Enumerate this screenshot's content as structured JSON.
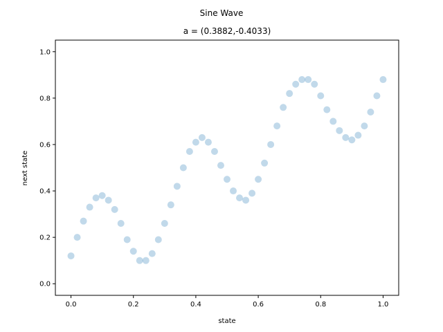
{
  "chart_data": {
    "type": "scatter",
    "title": "Sine Wave",
    "subtitle": "a = (0.3882,-0.4033)",
    "xlabel": "state",
    "ylabel": "next state",
    "xlim": [
      -0.05,
      1.05
    ],
    "ylim": [
      -0.05,
      1.05
    ],
    "xticks": [
      "0.0",
      "0.2",
      "0.4",
      "0.6",
      "0.8",
      "1.0"
    ],
    "yticks": [
      "0.0",
      "0.2",
      "0.4",
      "0.6",
      "0.8",
      "1.0"
    ],
    "grid": false,
    "point_color": "#1f77b4",
    "series": [
      {
        "x": [
          0.0,
          0.02,
          0.04,
          0.06,
          0.08,
          0.1,
          0.12,
          0.14,
          0.16,
          0.18,
          0.2,
          0.22,
          0.24,
          0.26,
          0.28,
          0.3,
          0.32,
          0.34,
          0.36,
          0.38,
          0.4,
          0.42,
          0.44,
          0.46,
          0.48,
          0.5,
          0.52,
          0.54,
          0.56,
          0.58,
          0.6,
          0.62,
          0.64,
          0.66,
          0.68,
          0.7,
          0.72,
          0.74,
          0.76,
          0.78,
          0.8,
          0.82,
          0.84,
          0.86,
          0.88,
          0.9,
          0.92,
          0.94,
          0.96,
          0.98,
          1.0
        ],
        "values": [
          0.12,
          0.2,
          0.27,
          0.33,
          0.37,
          0.38,
          0.36,
          0.32,
          0.26,
          0.19,
          0.14,
          0.1,
          0.1,
          0.13,
          0.19,
          0.26,
          0.34,
          0.42,
          0.5,
          0.57,
          0.61,
          0.63,
          0.61,
          0.57,
          0.51,
          0.45,
          0.4,
          0.37,
          0.36,
          0.39,
          0.45,
          0.52,
          0.6,
          0.68,
          0.76,
          0.82,
          0.86,
          0.88,
          0.88,
          0.86,
          0.81,
          0.75,
          0.7,
          0.66,
          0.63,
          0.62,
          0.64,
          0.68,
          0.74,
          0.81,
          0.88
        ]
      }
    ]
  }
}
